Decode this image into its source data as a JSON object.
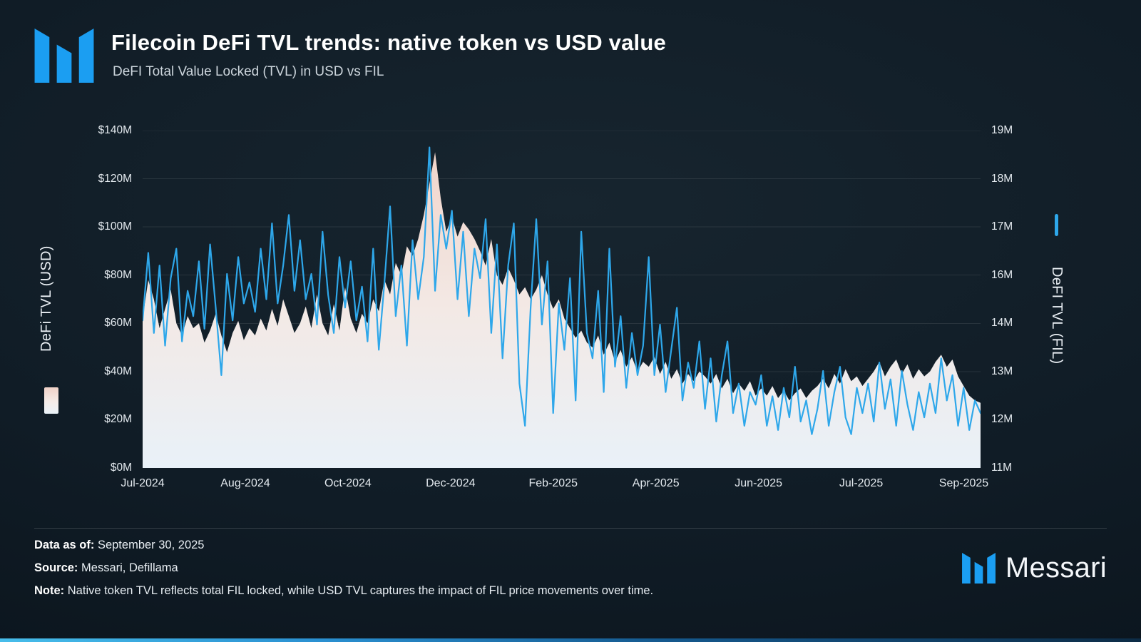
{
  "header": {
    "title": "Filecoin DeFi TVL trends: native token vs USD value",
    "subtitle": "DeFI Total Value Locked (TVL) in USD vs FIL"
  },
  "footer": {
    "data_as_of_label": "Data as of:",
    "data_as_of": "September 30, 2025",
    "source_label": "Source:",
    "source": "Messari, Defillama",
    "note_label": "Note:",
    "note": "Native token TVL reflects total FIL locked, while USD TVL captures the impact of FIL price movements over time.",
    "brand": "Messari"
  },
  "colors": {
    "accent_blue": "#2ea7ea",
    "logo_blue": "#1b9ef2",
    "area_top": "#f1d5cb",
    "area_mid": "#f3e9e5",
    "area_bottom": "#e9f1f8",
    "background": "#101c26"
  },
  "chart_data": {
    "type": "area+line",
    "title": "Filecoin DeFi TVL trends: native token vs USD value",
    "grid": true,
    "x_tick_labels": [
      "Jul-2024",
      "Aug-2024",
      "Oct-2024",
      "Dec-2024",
      "Feb-2025",
      "Apr-2025",
      "Jun-2025",
      "Jul-2025",
      "Sep-2025"
    ],
    "x_tick_span_fraction": 0.98,
    "left_axis": {
      "label": "DeFi TVL (USD)",
      "min": 0,
      "max": 140,
      "ticks": [
        "$0M",
        "$20M",
        "$40M",
        "$60M",
        "$80M",
        "$100M",
        "$120M",
        "$140M"
      ]
    },
    "right_axis": {
      "label": "DeFI TVL (FIL)",
      "min": 11,
      "max": 19,
      "ticks": [
        "11M",
        "12M",
        "13M",
        "14M",
        "16M",
        "17M",
        "18M",
        "19M"
      ]
    },
    "series": [
      {
        "name": "DeFi TVL (USD)",
        "type": "area",
        "axis": "left",
        "unit": "USD millions",
        "values": [
          62,
          78,
          70,
          58,
          66,
          74,
          60,
          55,
          63,
          58,
          60,
          52,
          57,
          64,
          55,
          48,
          56,
          61,
          53,
          58,
          55,
          62,
          57,
          66,
          59,
          70,
          63,
          56,
          60,
          67,
          58,
          72,
          60,
          55,
          68,
          57,
          75,
          62,
          56,
          64,
          60,
          70,
          65,
          78,
          72,
          85,
          80,
          92,
          88,
          95,
          105,
          118,
          131,
          112,
          98,
          104,
          96,
          102,
          99,
          95,
          90,
          84,
          95,
          80,
          76,
          83,
          78,
          72,
          75,
          70,
          74,
          80,
          72,
          66,
          70,
          62,
          58,
          54,
          57,
          52,
          50,
          55,
          47,
          52,
          44,
          49,
          42,
          46,
          40,
          44,
          42,
          46,
          39,
          44,
          37,
          41,
          35,
          39,
          36,
          40,
          38,
          35,
          39,
          33,
          37,
          31,
          35,
          32,
          36,
          30,
          33,
          30,
          34,
          29,
          32,
          28,
          31,
          33,
          29,
          32,
          34,
          37,
          33,
          39,
          35,
          41,
          36,
          38,
          34,
          37,
          40,
          44,
          38,
          42,
          45,
          39,
          43,
          37,
          41,
          38,
          40,
          44,
          47,
          42,
          45,
          38,
          34,
          30,
          28,
          27
        ]
      },
      {
        "name": "DeFI TVL (FIL)",
        "type": "line",
        "axis": "right",
        "unit": "FIL millions",
        "values": [
          14.5,
          16.1,
          14.2,
          15.8,
          13.9,
          15.5,
          16.2,
          14.0,
          15.2,
          14.6,
          15.9,
          14.3,
          16.3,
          14.8,
          13.2,
          15.6,
          14.5,
          16.0,
          14.9,
          15.4,
          14.7,
          16.2,
          15.0,
          16.8,
          14.9,
          15.8,
          17.0,
          15.2,
          16.4,
          15.0,
          15.6,
          14.4,
          16.6,
          15.1,
          14.2,
          16.0,
          14.8,
          15.9,
          14.5,
          15.3,
          14.0,
          16.2,
          13.8,
          15.4,
          17.2,
          14.6,
          15.8,
          13.9,
          16.4,
          15.0,
          16.0,
          18.6,
          15.2,
          17.0,
          16.2,
          17.1,
          15.0,
          16.6,
          14.6,
          16.2,
          15.5,
          16.9,
          14.2,
          16.3,
          13.6,
          15.8,
          16.8,
          13.0,
          12.0,
          14.8,
          16.9,
          14.4,
          15.9,
          12.3,
          14.9,
          13.8,
          15.5,
          12.6,
          16.6,
          14.2,
          13.6,
          15.2,
          12.8,
          16.2,
          13.4,
          14.6,
          12.9,
          14.2,
          13.2,
          13.9,
          16.0,
          13.2,
          14.4,
          12.8,
          13.8,
          14.8,
          12.6,
          13.5,
          12.9,
          14.0,
          12.4,
          13.6,
          12.1,
          13.2,
          14.0,
          12.3,
          13.0,
          12.0,
          12.8,
          12.5,
          13.2,
          12.0,
          12.7,
          11.9,
          12.9,
          12.2,
          13.4,
          12.1,
          12.6,
          11.8,
          12.4,
          13.3,
          12.0,
          12.8,
          13.4,
          12.2,
          11.8,
          12.9,
          12.3,
          13.0,
          12.1,
          13.5,
          12.4,
          13.1,
          12.0,
          13.3,
          12.5,
          11.9,
          12.8,
          12.2,
          13.0,
          12.3,
          13.6,
          12.6,
          13.2,
          12.0,
          12.9,
          11.9,
          12.6,
          12.3
        ]
      }
    ]
  }
}
